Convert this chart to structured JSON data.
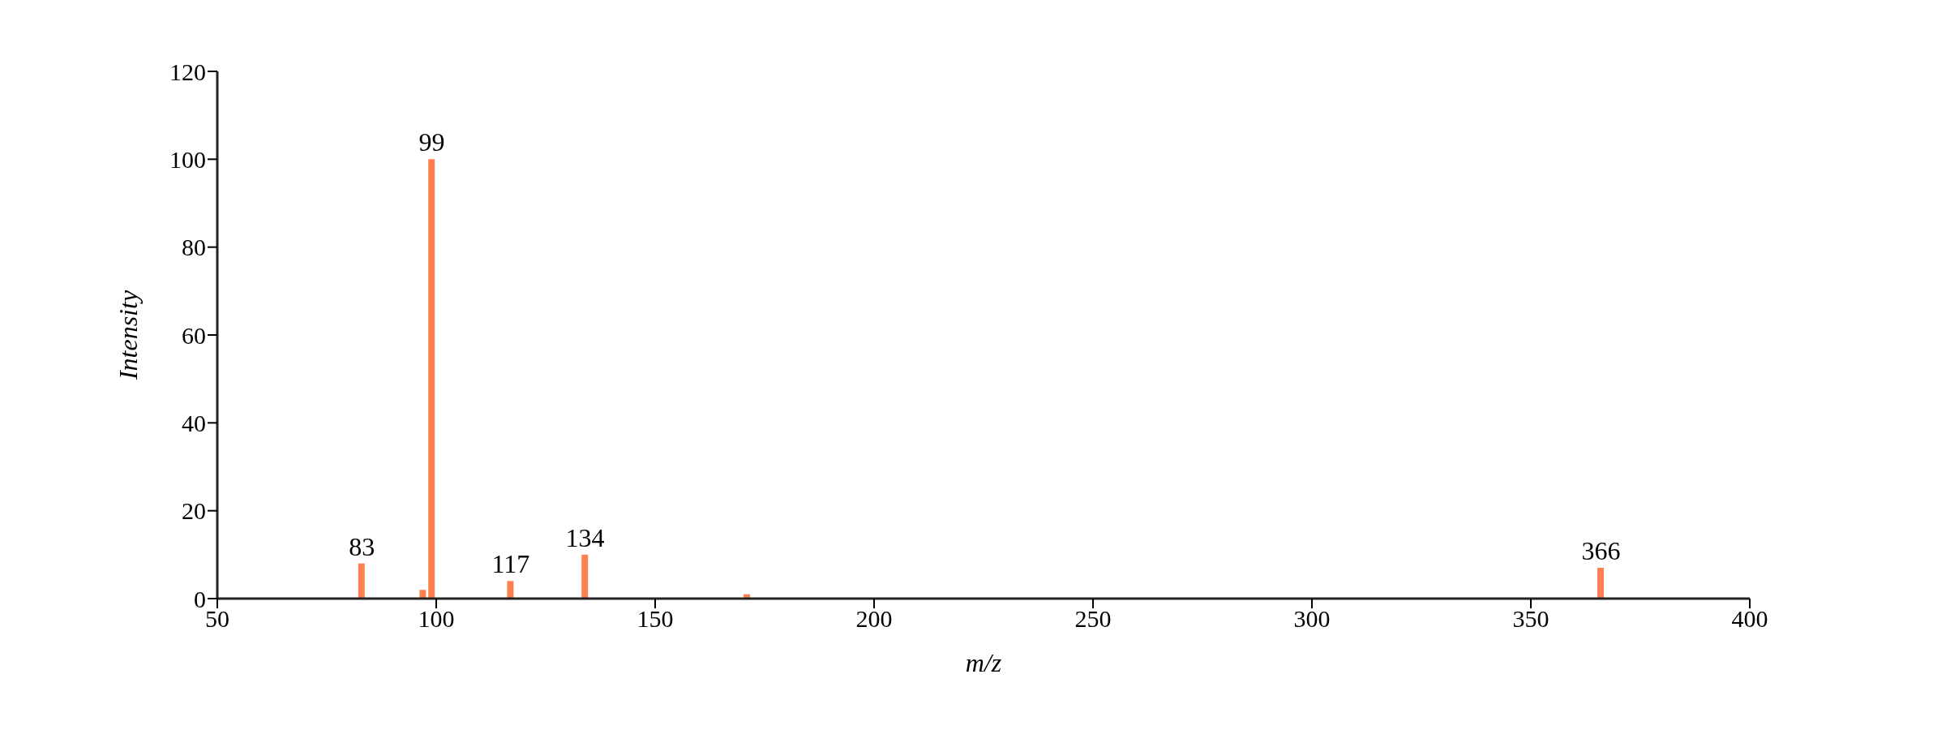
{
  "chart_data": {
    "type": "bar",
    "xlabel": "m/z",
    "ylabel": "Intensity",
    "x": [
      83,
      97,
      99,
      117,
      134,
      171,
      366
    ],
    "values": [
      8,
      2,
      100,
      4,
      10,
      1,
      7
    ],
    "color": "#ff7f50",
    "xlim": [
      50,
      400
    ],
    "xticks": [
      50,
      100,
      150,
      200,
      250,
      300,
      350,
      400
    ],
    "ylim": [
      0,
      120
    ],
    "yticks": [
      0,
      20,
      40,
      60,
      80,
      100,
      120
    ],
    "grid": false,
    "legend": false,
    "annotations": [
      {
        "text": "83",
        "x": 83,
        "y": 8
      },
      {
        "text": "99",
        "x": 99,
        "y": 100
      },
      {
        "text": "117",
        "x": 117,
        "y": 4
      },
      {
        "text": "134",
        "x": 134,
        "y": 10
      },
      {
        "text": "366",
        "x": 366,
        "y": 7
      }
    ]
  }
}
